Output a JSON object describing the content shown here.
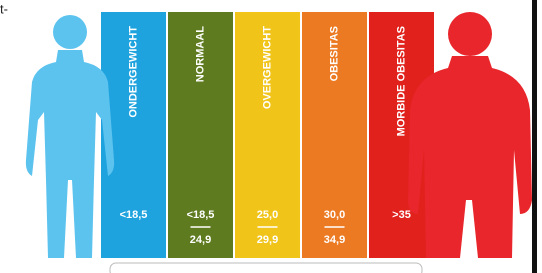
{
  "fragment": "t-",
  "columns": [
    {
      "label": "ONDERGEWICHT",
      "color": "#1fa3de",
      "range": [
        "<18,5"
      ]
    },
    {
      "label": "NORMAAL",
      "color": "#5e7b1f",
      "range": [
        "<18,5",
        "24,9"
      ]
    },
    {
      "label": "OVERGEWICHT",
      "color": "#f0c419",
      "range": [
        "25,0",
        "29,9"
      ]
    },
    {
      "label": "OBESITAS",
      "color": "#ec7a23",
      "range": [
        "30,0",
        "34,9"
      ]
    },
    {
      "label": "MORBIDE OBESITAS",
      "color": "#e0211c",
      "range": [
        ">35"
      ]
    }
  ]
}
